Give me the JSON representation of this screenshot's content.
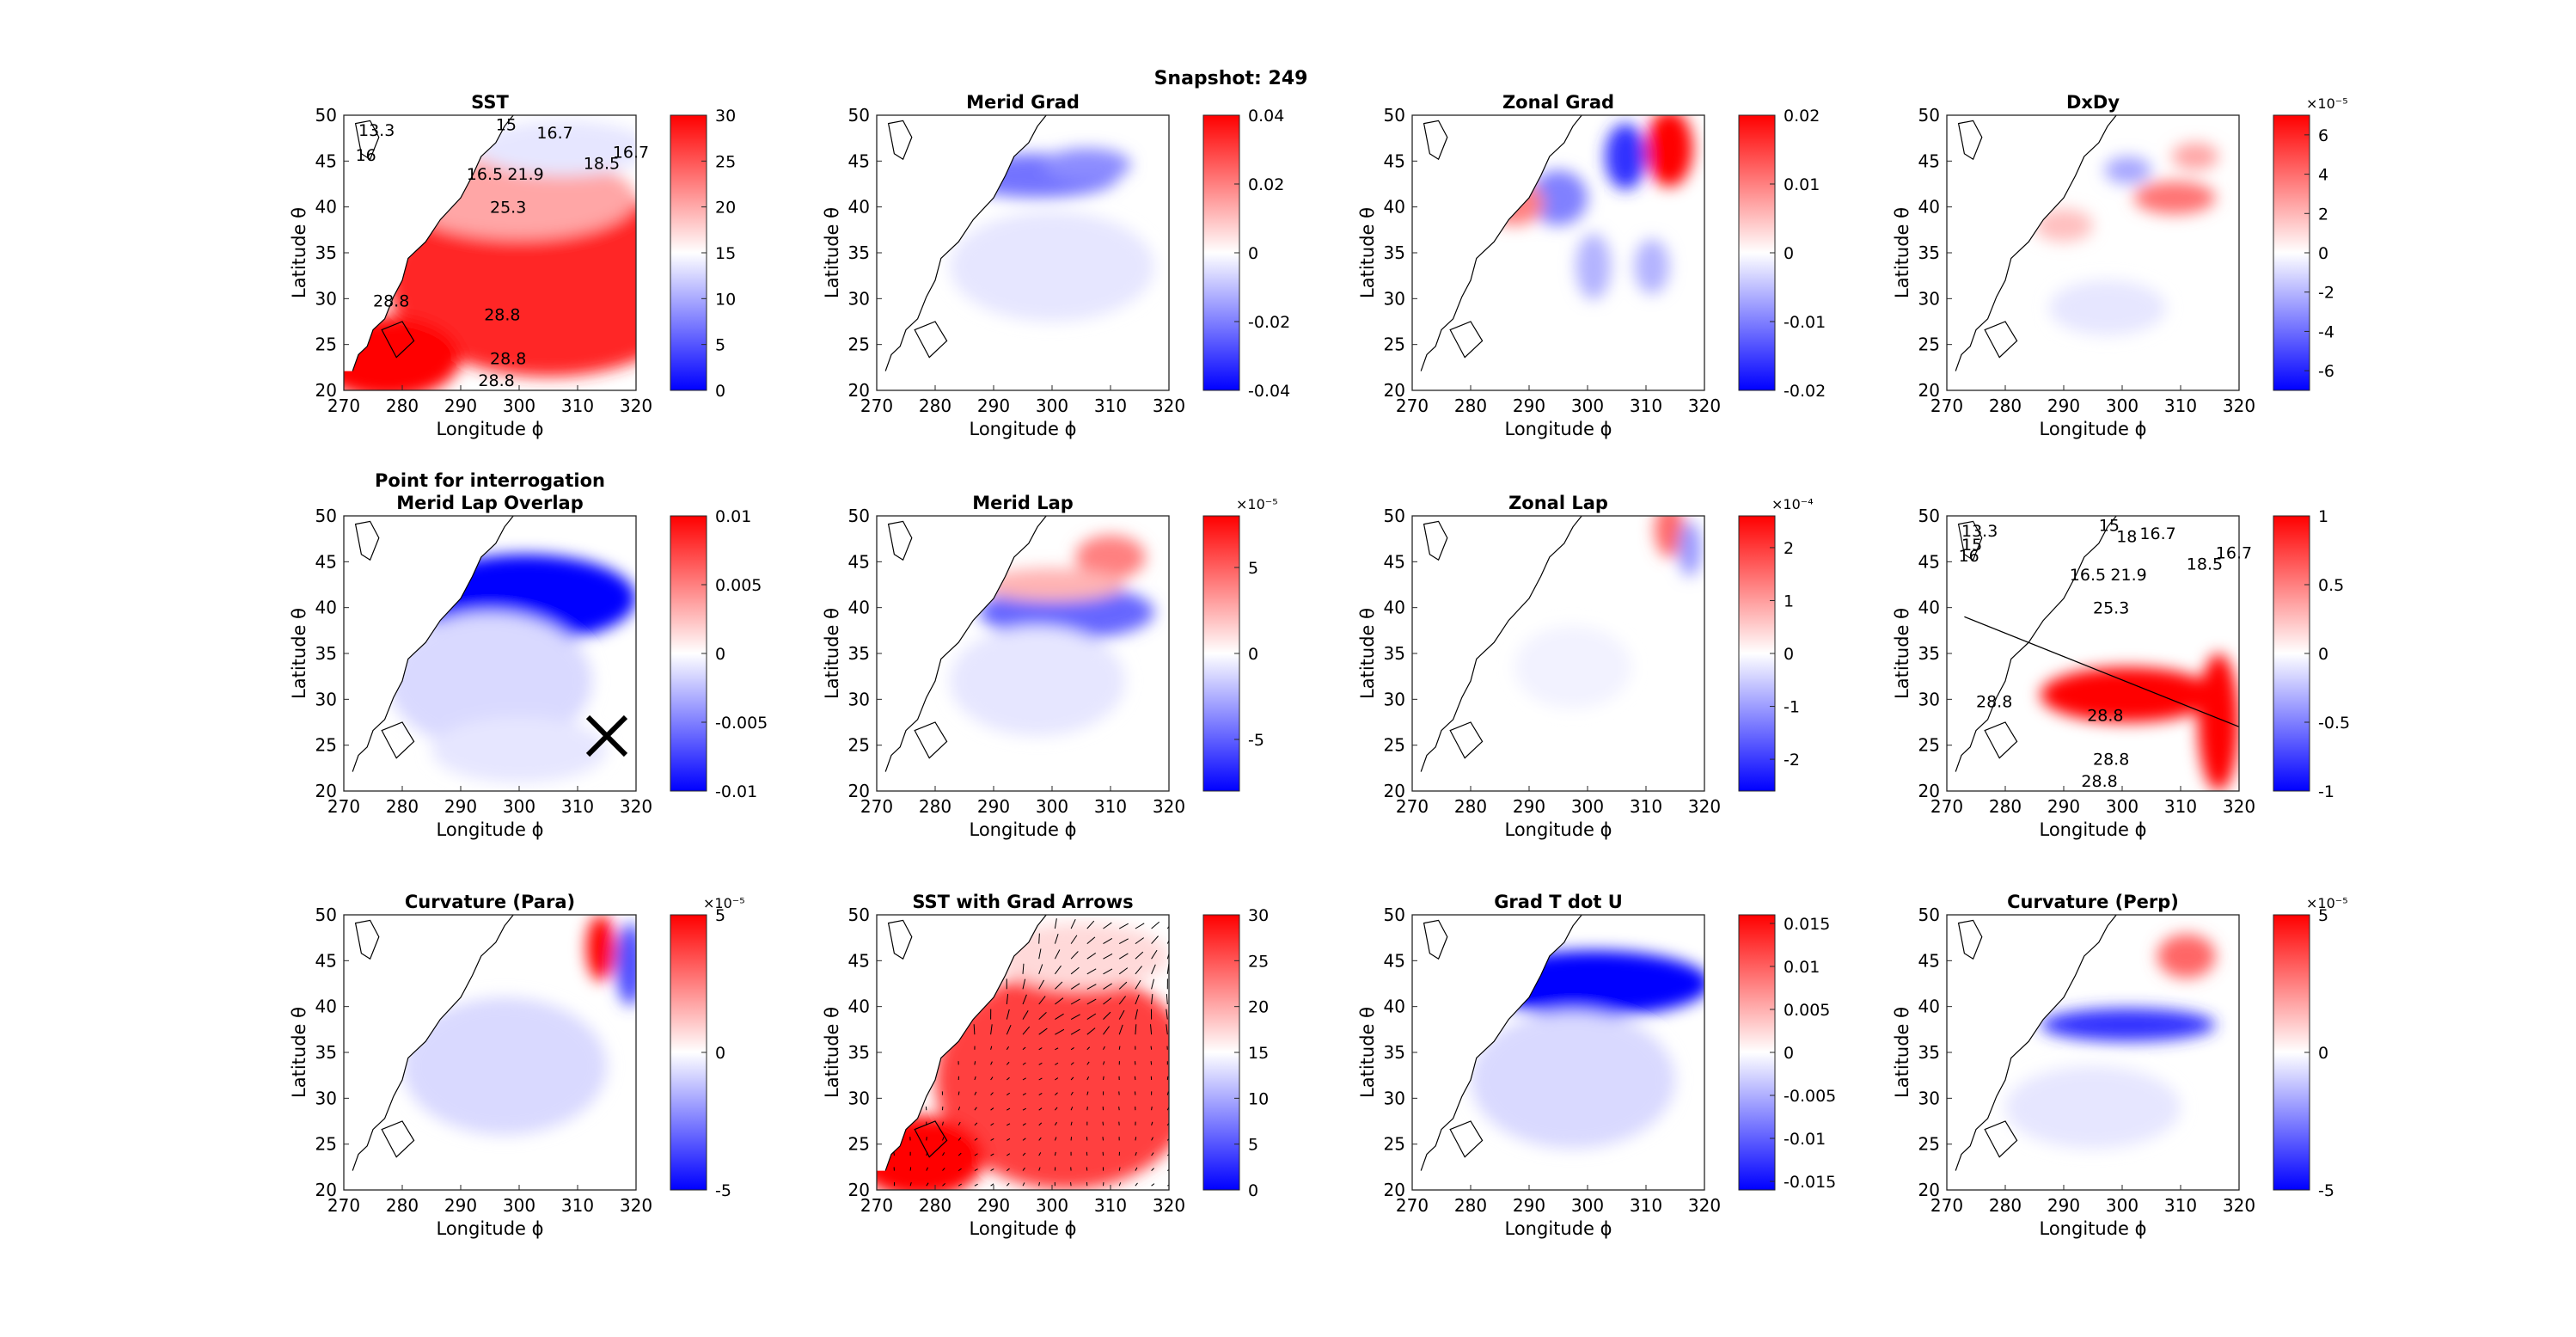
{
  "figure": {
    "suptitle": "Snapshot: 249",
    "colors": {
      "cmap_low": "#0000ff",
      "cmap_mid": "#ffffff",
      "cmap_high": "#ff0000",
      "contour": "#000000",
      "land": "#ffffff"
    }
  },
  "chart_data": [
    {
      "type": "heatmap",
      "title": "SST",
      "xlabel": "Longitude ϕ",
      "ylabel": "Latitude θ",
      "xlim": [
        270,
        320
      ],
      "ylim": [
        20,
        50
      ],
      "xticks": [
        "270",
        "280",
        "290",
        "300",
        "310",
        "320"
      ],
      "yticks": [
        "20",
        "25",
        "30",
        "35",
        "40",
        "45",
        "50"
      ],
      "clim": [
        0,
        30
      ],
      "colorbar_ticks": [
        "0",
        "5",
        "10",
        "15",
        "20",
        "25",
        "30"
      ],
      "colorbar_exponent": "",
      "field": "sst",
      "contour_labels": [
        "13.3",
        "15",
        "16.7",
        "16",
        "18.5",
        "16.7",
        "16.5",
        "21.9",
        "25.3",
        "28.8",
        "28.8",
        "28.8",
        "28.8"
      ],
      "grid": false
    },
    {
      "type": "heatmap",
      "title": "Merid Grad",
      "xlabel": "Longitude ϕ",
      "ylabel": "Latitude θ",
      "xlim": [
        270,
        320
      ],
      "ylim": [
        20,
        50
      ],
      "xticks": [
        "270",
        "280",
        "290",
        "300",
        "310",
        "320"
      ],
      "yticks": [
        "20",
        "25",
        "30",
        "35",
        "40",
        "45",
        "50"
      ],
      "clim": [
        -0.04,
        0.04
      ],
      "colorbar_ticks": [
        "-0.04",
        "-0.02",
        "0",
        "0.02",
        "0.04"
      ],
      "colorbar_exponent": "",
      "field": "merid_grad",
      "contour_labels": [],
      "grid": false
    },
    {
      "type": "heatmap",
      "title": "Zonal Grad",
      "xlabel": "Longitude ϕ",
      "ylabel": "Latitude θ",
      "xlim": [
        270,
        320
      ],
      "ylim": [
        20,
        50
      ],
      "xticks": [
        "270",
        "280",
        "290",
        "300",
        "310",
        "320"
      ],
      "yticks": [
        "20",
        "25",
        "30",
        "35",
        "40",
        "45",
        "50"
      ],
      "clim": [
        -0.02,
        0.02
      ],
      "colorbar_ticks": [
        "-0.02",
        "-0.01",
        "0",
        "0.01",
        "0.02"
      ],
      "colorbar_exponent": "",
      "field": "zonal_grad",
      "contour_labels": [],
      "grid": false
    },
    {
      "type": "heatmap",
      "title": "DxDy",
      "xlabel": "Longitude ϕ",
      "ylabel": "Latitude θ",
      "xlim": [
        270,
        320
      ],
      "ylim": [
        20,
        50
      ],
      "xticks": [
        "270",
        "280",
        "290",
        "300",
        "310",
        "320"
      ],
      "yticks": [
        "20",
        "25",
        "30",
        "35",
        "40",
        "45",
        "50"
      ],
      "clim": [
        -7,
        7
      ],
      "colorbar_ticks": [
        "-6",
        "-4",
        "-2",
        "0",
        "2",
        "4",
        "6"
      ],
      "colorbar_exponent": "×10⁻⁵",
      "field": "dxdy",
      "contour_labels": [],
      "grid": false
    },
    {
      "type": "heatmap",
      "title": "Point for interrogation",
      "subtitle": "Merid Lap Overlap",
      "xlabel": "Longitude ϕ",
      "ylabel": "Latitude θ",
      "xlim": [
        270,
        320
      ],
      "ylim": [
        20,
        50
      ],
      "xticks": [
        "270",
        "280",
        "290",
        "300",
        "310",
        "320"
      ],
      "yticks": [
        "20",
        "25",
        "30",
        "35",
        "40",
        "45",
        "50"
      ],
      "clim": [
        -0.01,
        0.01
      ],
      "colorbar_ticks": [
        "-0.01",
        "-0.005",
        "0",
        "0.005",
        "0.01"
      ],
      "colorbar_exponent": "",
      "field": "lap_overlap",
      "marker": {
        "symbol": "×",
        "lon": 315,
        "lat": 26
      },
      "contour_labels": [],
      "grid": false
    },
    {
      "type": "heatmap",
      "title": "Merid Lap",
      "xlabel": "Longitude ϕ",
      "ylabel": "Latitude θ",
      "xlim": [
        270,
        320
      ],
      "ylim": [
        20,
        50
      ],
      "xticks": [
        "270",
        "280",
        "290",
        "300",
        "310",
        "320"
      ],
      "yticks": [
        "20",
        "25",
        "30",
        "35",
        "40",
        "45",
        "50"
      ],
      "clim": [
        -8,
        8
      ],
      "colorbar_ticks": [
        "-5",
        "0",
        "5"
      ],
      "colorbar_exponent": "×10⁻⁵",
      "field": "merid_lap",
      "contour_labels": [],
      "grid": false
    },
    {
      "type": "heatmap",
      "title": "Zonal Lap",
      "xlabel": "Longitude ϕ",
      "ylabel": "Latitude θ",
      "xlim": [
        270,
        320
      ],
      "ylim": [
        20,
        50
      ],
      "xticks": [
        "270",
        "280",
        "290",
        "300",
        "310",
        "320"
      ],
      "yticks": [
        "20",
        "25",
        "30",
        "35",
        "40",
        "45",
        "50"
      ],
      "clim": [
        -2.6,
        2.6
      ],
      "colorbar_ticks": [
        "-2",
        "-1",
        "0",
        "1",
        "2"
      ],
      "colorbar_exponent": "×10⁻⁴",
      "field": "zonal_lap",
      "contour_labels": [],
      "grid": false
    },
    {
      "type": "heatmap",
      "title": "",
      "xlabel": "Longitude ϕ",
      "ylabel": "Latitude θ",
      "xlim": [
        270,
        320
      ],
      "ylim": [
        20,
        50
      ],
      "xticks": [
        "270",
        "280",
        "290",
        "300",
        "310",
        "320"
      ],
      "yticks": [
        "20",
        "25",
        "30",
        "35",
        "40",
        "45",
        "50"
      ],
      "clim": [
        -1,
        1
      ],
      "colorbar_ticks": [
        "-1",
        "-0.5",
        "0",
        "0.5",
        "1"
      ],
      "colorbar_exponent": "",
      "field": "mask",
      "line": {
        "lon": [
          273,
          320
        ],
        "lat": [
          39,
          27
        ]
      },
      "contour_labels": [
        "13.3",
        "15",
        "16.7",
        "16",
        "18.5",
        "16.7",
        "16.5",
        "21.9",
        "25.3",
        "28.8",
        "28.8",
        "28.8",
        "28.8",
        "18",
        "15"
      ],
      "grid": false
    },
    {
      "type": "heatmap",
      "title": "Curvature (Para)",
      "xlabel": "Longitude ϕ",
      "ylabel": "Latitude θ",
      "xlim": [
        270,
        320
      ],
      "ylim": [
        20,
        50
      ],
      "xticks": [
        "270",
        "280",
        "290",
        "300",
        "310",
        "320"
      ],
      "yticks": [
        "20",
        "25",
        "30",
        "35",
        "40",
        "45",
        "50"
      ],
      "clim": [
        -5,
        5
      ],
      "colorbar_ticks": [
        "-5",
        "0",
        "5"
      ],
      "colorbar_exponent": "×10⁻⁵",
      "field": "curv_para",
      "contour_labels": [],
      "grid": false
    },
    {
      "type": "heatmap",
      "title": "SST with Grad Arrows",
      "xlabel": "Longitude ϕ",
      "ylabel": "Latitude θ",
      "xlim": [
        270,
        320
      ],
      "ylim": [
        20,
        50
      ],
      "xticks": [
        "270",
        "280",
        "290",
        "300",
        "310",
        "320"
      ],
      "yticks": [
        "20",
        "25",
        "30",
        "35",
        "40",
        "45",
        "50"
      ],
      "clim": [
        0,
        30
      ],
      "colorbar_ticks": [
        "0",
        "5",
        "10",
        "15",
        "20",
        "25",
        "30"
      ],
      "colorbar_exponent": "",
      "field": "sst_arrows",
      "arrows": true,
      "contour_labels": [],
      "grid": false
    },
    {
      "type": "heatmap",
      "title": "Grad T dot U",
      "xlabel": "Longitude ϕ",
      "ylabel": "Latitude θ",
      "xlim": [
        270,
        320
      ],
      "ylim": [
        20,
        50
      ],
      "xticks": [
        "270",
        "280",
        "290",
        "300",
        "310",
        "320"
      ],
      "yticks": [
        "20",
        "25",
        "30",
        "35",
        "40",
        "45",
        "50"
      ],
      "clim": [
        -0.016,
        0.016
      ],
      "colorbar_ticks": [
        "-0.015",
        "-0.01",
        "-0.005",
        "0",
        "0.005",
        "0.01",
        "0.015"
      ],
      "colorbar_exponent": "",
      "field": "gradt_dot_u",
      "contour_labels": [],
      "grid": false
    },
    {
      "type": "heatmap",
      "title": "Curvature (Perp)",
      "xlabel": "Longitude ϕ",
      "ylabel": "Latitude θ",
      "xlim": [
        270,
        320
      ],
      "ylim": [
        20,
        50
      ],
      "xticks": [
        "270",
        "280",
        "290",
        "300",
        "310",
        "320"
      ],
      "yticks": [
        "20",
        "25",
        "30",
        "35",
        "40",
        "45",
        "50"
      ],
      "clim": [
        -5,
        5
      ],
      "colorbar_ticks": [
        "-5",
        "0",
        "5"
      ],
      "colorbar_exponent": "×10⁻⁵",
      "field": "curv_perp",
      "contour_labels": [],
      "grid": false
    }
  ]
}
